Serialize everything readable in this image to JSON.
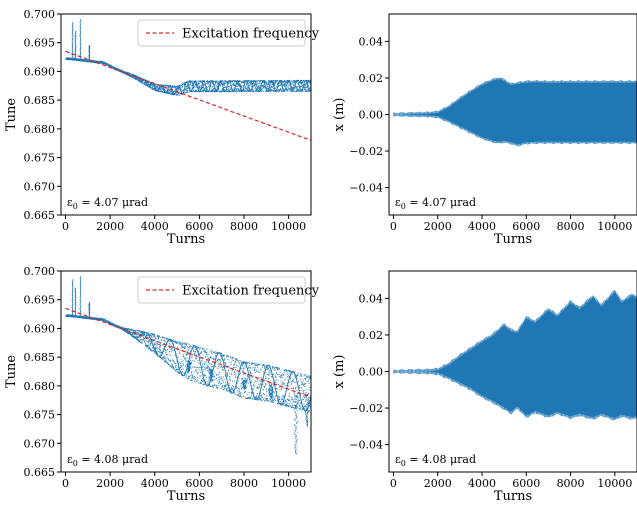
{
  "chart_data": [
    {
      "type": "scatter",
      "panel": "top-left",
      "xlabel": "Turns",
      "ylabel": "Tune",
      "xlim": [
        -200,
        11000
      ],
      "ylim": [
        0.665,
        0.7
      ],
      "xticks": [
        0,
        2000,
        4000,
        6000,
        8000,
        10000
      ],
      "yticks": [
        0.665,
        0.67,
        0.675,
        0.68,
        0.685,
        0.69,
        0.695,
        0.7
      ],
      "yticklabels": [
        "0.665",
        "0.670",
        "0.675",
        "0.680",
        "0.685",
        "0.690",
        "0.695",
        "0.700"
      ],
      "annotation": {
        "prefix": "ε",
        "sub": "0",
        "text": " = 4.07 μrad"
      },
      "legend": {
        "position": "top-right",
        "entries": [
          {
            "label": "Excitation frequency",
            "style": "dashed",
            "color": "#d62728"
          }
        ]
      },
      "series": [
        {
          "kind": "tune-scatter",
          "color": "#1f77b4",
          "spikes": [
            [
              300,
              0.6985
            ],
            [
              430,
              0.697
            ],
            [
              650,
              0.699
            ],
            [
              1050,
              0.6945
            ],
            [
              1600,
              0.6918
            ]
          ],
          "base": [
            [
              200,
              0.6922
            ],
            [
              1700,
              0.6915
            ],
            [
              2200,
              0.6905
            ],
            [
              3000,
              0.6892
            ],
            [
              4000,
              0.6872
            ],
            [
              5000,
              0.6866
            ],
            [
              5500,
              0.6874
            ],
            [
              11000,
              0.6875
            ]
          ],
          "osc_start": 2500,
          "amp_max": 0.0008,
          "period": 380
        },
        {
          "kind": "excitation-line",
          "color": "#d62728",
          "x": [
            0,
            11000
          ],
          "y": [
            0.6935,
            0.678
          ]
        }
      ]
    },
    {
      "type": "area",
      "panel": "top-right",
      "xlabel": "Turns",
      "ylabel": "x (m)",
      "xlim": [
        -200,
        11000
      ],
      "ylim": [
        -0.055,
        0.055
      ],
      "xticks": [
        0,
        2000,
        4000,
        6000,
        8000,
        10000
      ],
      "yticks": [
        -0.04,
        -0.02,
        0.0,
        0.02,
        0.04
      ],
      "yticklabels": [
        "−0.04",
        "−0.02",
        "0.00",
        "0.02",
        "0.04"
      ],
      "annotation": {
        "prefix": "ε",
        "sub": "0",
        "text": " = 4.07 μrad"
      },
      "series": [
        {
          "kind": "envelope",
          "color": "#1f77b4",
          "x": [
            0,
            500,
            1000,
            1500,
            2000,
            2500,
            3000,
            3500,
            4000,
            4500,
            4800,
            5000,
            5300,
            5600,
            6000,
            6500,
            7000,
            8000,
            9000,
            10000,
            11000
          ],
          "upper": [
            0.001,
            0.0012,
            0.0014,
            0.0015,
            0.002,
            0.005,
            0.0095,
            0.0135,
            0.0172,
            0.0197,
            0.0205,
            0.0195,
            0.0172,
            0.0178,
            0.0186,
            0.0187,
            0.0185,
            0.0186,
            0.0186,
            0.0186,
            0.0186
          ],
          "lower": [
            -0.001,
            -0.0012,
            -0.0014,
            -0.0015,
            -0.002,
            -0.0045,
            -0.0075,
            -0.0105,
            -0.0135,
            -0.0155,
            -0.016,
            -0.0155,
            -0.0162,
            -0.0175,
            -0.0163,
            -0.016,
            -0.016,
            -0.016,
            -0.016,
            -0.016,
            -0.016
          ],
          "ripple": 0.0014,
          "period": 380
        }
      ]
    },
    {
      "type": "scatter",
      "panel": "bottom-left",
      "xlabel": "Turns",
      "ylabel": "Tune",
      "xlim": [
        -200,
        11000
      ],
      "ylim": [
        0.665,
        0.7
      ],
      "xticks": [
        0,
        2000,
        4000,
        6000,
        8000,
        10000
      ],
      "yticks": [
        0.665,
        0.67,
        0.675,
        0.68,
        0.685,
        0.69,
        0.695,
        0.7
      ],
      "yticklabels": [
        "0.665",
        "0.670",
        "0.675",
        "0.680",
        "0.685",
        "0.690",
        "0.695",
        "0.700"
      ],
      "annotation": {
        "prefix": "ε",
        "sub": "0",
        "text": " = 4.08 μrad"
      },
      "legend": {
        "position": "top-right",
        "entries": [
          {
            "label": "Excitation frequency",
            "style": "dashed",
            "color": "#d62728"
          }
        ]
      },
      "series": [
        {
          "kind": "tune-scatter",
          "color": "#1f77b4",
          "spikes": [
            [
              300,
              0.6985
            ],
            [
              430,
              0.697
            ],
            [
              650,
              0.699
            ],
            [
              1050,
              0.6945
            ],
            [
              1600,
              0.6918
            ]
          ],
          "base": [
            [
              200,
              0.6922
            ],
            [
              1700,
              0.6915
            ],
            [
              2200,
              0.6905
            ],
            [
              3000,
              0.6892
            ],
            [
              4000,
              0.6873
            ],
            [
              5000,
              0.685
            ],
            [
              6000,
              0.6835
            ],
            [
              7000,
              0.6825
            ],
            [
              8000,
              0.681
            ],
            [
              9000,
              0.6805
            ],
            [
              10000,
              0.6795
            ],
            [
              11000,
              0.6785
            ]
          ],
          "osc_start": 2500,
          "amp_max": 0.003,
          "period": 1100,
          "dips": [
            [
              5500,
              0.6825
            ],
            [
              6500,
              0.6808
            ],
            [
              8000,
              0.6795
            ],
            [
              9200,
              0.6778
            ],
            [
              10300,
              0.6682
            ],
            [
              10800,
              0.673
            ]
          ]
        },
        {
          "kind": "excitation-line",
          "color": "#d62728",
          "x": [
            0,
            11000
          ],
          "y": [
            0.6935,
            0.678
          ]
        }
      ]
    },
    {
      "type": "area",
      "panel": "bottom-right",
      "xlabel": "Turns",
      "ylabel": "x (m)",
      "xlim": [
        -200,
        11000
      ],
      "ylim": [
        -0.055,
        0.055
      ],
      "xticks": [
        0,
        2000,
        4000,
        6000,
        8000,
        10000
      ],
      "yticks": [
        -0.04,
        -0.02,
        0.0,
        0.02,
        0.04
      ],
      "yticklabels": [
        "−0.04",
        "−0.02",
        "0.00",
        "0.02",
        "0.04"
      ],
      "annotation": {
        "prefix": "ε",
        "sub": "0",
        "text": " = 4.08 μrad"
      },
      "series": [
        {
          "kind": "envelope",
          "color": "#1f77b4",
          "x": [
            0,
            500,
            1000,
            1500,
            2000,
            2500,
            3000,
            3500,
            4000,
            4500,
            5000,
            5300,
            5600,
            6000,
            6400,
            7000,
            7400,
            8000,
            8400,
            9000,
            9400,
            10000,
            10300,
            10800,
            11000
          ],
          "upper": [
            0.001,
            0.0012,
            0.0014,
            0.0015,
            0.002,
            0.005,
            0.0095,
            0.0135,
            0.0175,
            0.021,
            0.0265,
            0.0235,
            0.0225,
            0.0305,
            0.028,
            0.035,
            0.0315,
            0.039,
            0.0355,
            0.042,
            0.037,
            0.045,
            0.039,
            0.043,
            0.041
          ],
          "lower": [
            -0.001,
            -0.0012,
            -0.0014,
            -0.0015,
            -0.002,
            -0.0045,
            -0.0075,
            -0.0105,
            -0.0145,
            -0.0175,
            -0.021,
            -0.0235,
            -0.0205,
            -0.0255,
            -0.023,
            -0.0255,
            -0.0235,
            -0.026,
            -0.0245,
            -0.0265,
            -0.0245,
            -0.027,
            -0.025,
            -0.0265,
            -0.0255
          ],
          "ripple": 0.0018,
          "period": 380
        }
      ]
    }
  ]
}
